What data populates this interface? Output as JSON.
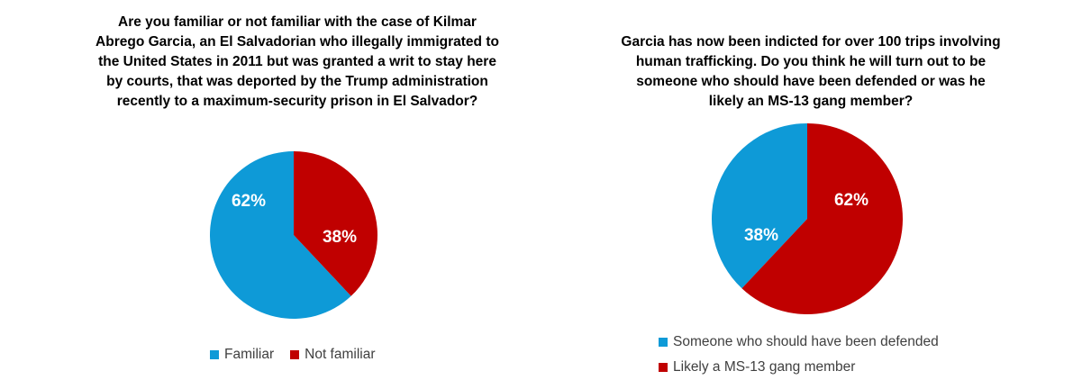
{
  "colors": {
    "blue": "#0E9AD7",
    "red": "#C00000",
    "label": "#ffffff"
  },
  "chart_data": [
    {
      "type": "pie",
      "title": "Are you familiar or not familiar with the case of Kilmar Abrego Garcia, an El Salvadorian who illegally immigrated to the United States in 2011 but was granted a writ to stay here by courts, that was deported by the Trump administration recently to a maximum-security prison in El Salvador?",
      "title_lines": [
        "Are you familiar or not familiar with the case of Kilmar",
        "Abrego Garcia, an El Salvadorian who illegally immigrated to",
        "the United States in 2011 but was granted a writ to stay here",
        "by courts, that was deported by the Trump administration",
        "recently to a maximum-security prison in El Salvador?"
      ],
      "slices": [
        {
          "name": "Familiar",
          "value": 62,
          "label": "62%",
          "color": "#0E9AD7"
        },
        {
          "name": "Not familiar",
          "value": 38,
          "label": "38%",
          "color": "#C00000"
        }
      ],
      "legend_placement": "bottom"
    },
    {
      "type": "pie",
      "title": "Garcia has now been indicted for over 100 trips involving human trafficking. Do you think he will turn out to be someone who should have been defended or was he likely an MS-13 gang member?",
      "title_lines": [
        "Garcia has now been indicted for over 100 trips involving",
        "human trafficking. Do you think he will turn out to be",
        "someone who should have been defended or was he",
        "likely an MS-13 gang member?"
      ],
      "slices": [
        {
          "name": "Someone who should have been defended",
          "value": 38,
          "label": "38%",
          "color": "#0E9AD7"
        },
        {
          "name": "Likely a MS-13 gang member",
          "value": 62,
          "label": "62%",
          "color": "#C00000"
        }
      ],
      "legend_placement": "bottom"
    }
  ]
}
